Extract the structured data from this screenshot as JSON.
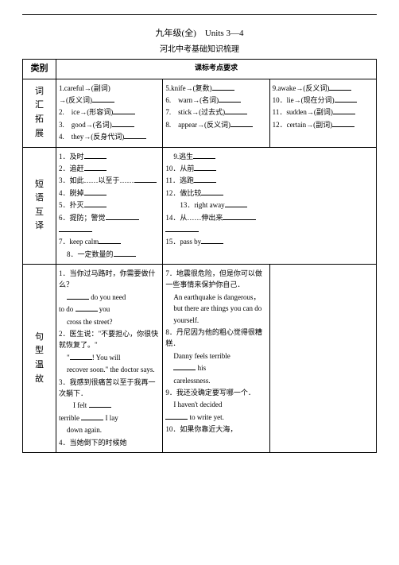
{
  "header": {
    "title": "九年级(全)　Units 3—4",
    "subtitle": "河北中考基础知识梳理"
  },
  "table": {
    "head": {
      "c1": "类别",
      "c2": "课标考点要求"
    },
    "row1": {
      "cat": [
        "词",
        "汇",
        "拓",
        "展"
      ],
      "col2": [
        "1.careful→(副词)",
        "→(反义词)",
        "2.　ice→(形容词)",
        "3.　good→(名词)",
        "4.　they→(反身代词)"
      ],
      "col3": [
        "5.knife→(复数)",
        "6.　warn→(名词)",
        "7.　stick→(过去式)",
        "8.　appear→(反义词)"
      ],
      "col4": [
        "9.awake→(反义词)",
        "10．lie→(现在分词)",
        "11．sudden→(副词)",
        "12．certain→(副词)"
      ]
    },
    "row2": {
      "cat": [
        "短",
        "语",
        "互",
        "译"
      ],
      "col2": [
        "1．及时",
        "2．追赶",
        "3．如此……以至于……",
        "4．脱掉",
        "5．扑灭",
        "6．提防；警觉",
        "",
        "7．keep calm",
        "8．一定数量的"
      ],
      "col3": [
        "9.逃生",
        "10．从前",
        "11．逃跑",
        "12．做比较",
        "13．right away",
        "14．从……伸出来",
        "",
        "15．pass by"
      ]
    },
    "row3": {
      "cat": [
        "句",
        "型",
        "温",
        "故"
      ],
      "col2": [
        "1．当你过马路时，你需要做什么？",
        "do you need",
        "to do",
        "you",
        "cross the street?",
        "2．医生说：\"不要担心，你很快就恢复了。\"",
        "\"",
        "! You will",
        "recover soon.\" the doctor says.",
        "3．我感到很痛苦以至于我再一次躺下．",
        "I felt",
        "terrible",
        "I lay",
        "down again.",
        "4．当她倒下的时候她"
      ],
      "col3": [
        "7．地震很危险，但是你可以做一些事情来保护你自己．",
        "An earthquake is dangerous，but there are things you can do yourself.",
        "8．丹尼因为他的粗心觉得很糟糕．",
        "Danny feels terrible",
        "his",
        "carelessness.",
        "9．我还没确定要写哪一个．",
        "I haven't decided",
        "to write yet.",
        "10．如果你靠近大海，"
      ]
    }
  }
}
